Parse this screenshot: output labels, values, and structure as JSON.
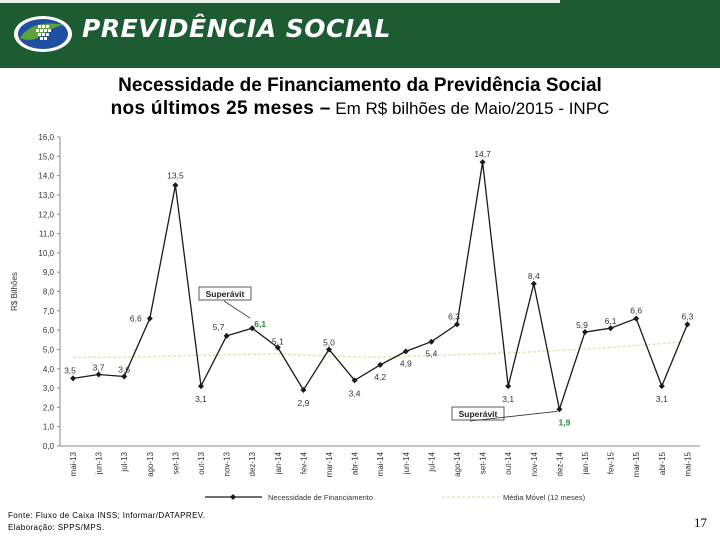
{
  "header": {
    "brand": "PREVIDÊNCIA SOCIAL",
    "logo_text": "PREVIDÊNCIA SOCIAL logo",
    "colors": {
      "background": "#1d5b33",
      "logo_blue": "#1f4fa0",
      "logo_green": "#5da33a"
    }
  },
  "title": {
    "line1": "Necessidade de Financiamento da Previdência Social",
    "line2_bold": "nos últimos 25 meses –",
    "line2_rest": " Em R$ bilhões de Maio/2015 - INPC"
  },
  "chart_data": {
    "type": "line",
    "ylabel": "R$ Bilhões",
    "ylim": [
      0,
      16
    ],
    "ystep": 1,
    "grid": false,
    "categories": [
      "mai-13",
      "jun-13",
      "jul-13",
      "ago-13",
      "set-13",
      "out-13",
      "nov-13",
      "dez-13",
      "jan-14",
      "fev-14",
      "mar-14",
      "abr-14",
      "mai-14",
      "jun-14",
      "jul-14",
      "ago-14",
      "set-14",
      "out-14",
      "nov-14",
      "dez-14",
      "jan-15",
      "fev-15",
      "mar-15",
      "abr-15",
      "mai-15"
    ],
    "series": [
      {
        "name": "Necessidade de Financiamento",
        "color": "#1a1a1a",
        "values": [
          3.5,
          3.7,
          3.6,
          6.6,
          13.5,
          3.1,
          5.7,
          6.1,
          5.1,
          2.9,
          5.0,
          3.4,
          4.2,
          4.9,
          5.4,
          6.3,
          14.7,
          3.1,
          8.4,
          1.9,
          5.9,
          6.1,
          6.6,
          3.1,
          6.3
        ],
        "labels": [
          "3,5",
          "3,7",
          "3,6",
          "6,6",
          "13,5",
          "3,1",
          "5,7",
          "6,1",
          "5,1",
          "2,9",
          "5,0",
          "3,4",
          "4,2",
          "4,9",
          "5,4",
          "6,3",
          "14,7",
          "3,1",
          "8,4",
          "1,9",
          "5,9",
          "6,1",
          "6,6",
          "3,1",
          "6,3"
        ]
      },
      {
        "name": "Média Móvel (12 meses)",
        "color": "#e6dfa8",
        "values": [
          4.6,
          4.6,
          4.6,
          4.63,
          4.66,
          4.7,
          4.72,
          4.75,
          4.78,
          4.7,
          4.66,
          4.62,
          4.6,
          4.64,
          4.68,
          4.72,
          4.77,
          4.82,
          4.88,
          4.95,
          5.02,
          5.1,
          5.2,
          5.3,
          5.42
        ]
      }
    ],
    "annotations": [
      {
        "text": "Superávit",
        "point_index": 7
      },
      {
        "text": "Superávit",
        "point_index": 19
      }
    ],
    "highlight_indices": [
      7,
      19
    ],
    "highlight_color": "#2e8b2e"
  },
  "footer": {
    "source": "Fonte: Fluxo de Caixa INSS; Informar/DATAPREV.",
    "prepared": "Elaboração: SPPS/MPS."
  },
  "page_number": "17"
}
